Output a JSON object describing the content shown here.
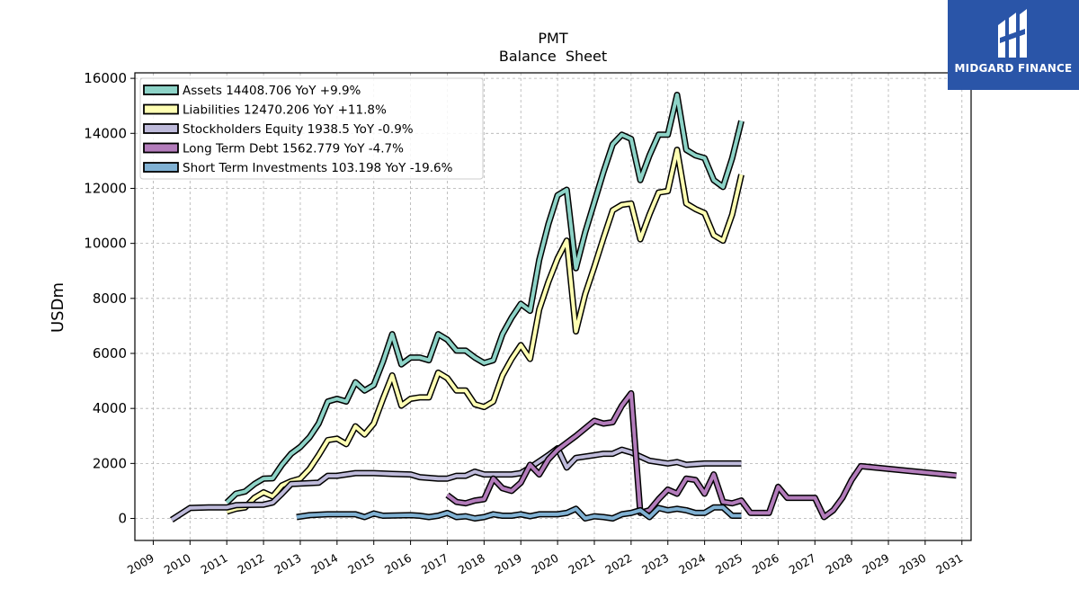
{
  "brand": {
    "logo_text": "MIDGARD FINANCE",
    "background": "#2a55a8"
  },
  "chart_data": {
    "type": "line",
    "title": "PMT",
    "subtitle": "Balance  Sheet",
    "xlabel": "",
    "ylabel": "USDm",
    "xlim": [
      2008.5,
      2031.25
    ],
    "ylim": [
      -800,
      16200
    ],
    "x_ticks": [
      "2009",
      "2010",
      "2011",
      "2012",
      "2013",
      "2014",
      "2015",
      "2016",
      "2017",
      "2018",
      "2019",
      "2020",
      "2021",
      "2022",
      "2023",
      "2024",
      "2025",
      "2026",
      "2027",
      "2028",
      "2029",
      "2030",
      "2031"
    ],
    "y_ticks": [
      "0",
      "2000",
      "4000",
      "6000",
      "8000",
      "10000",
      "12000",
      "14000",
      "16000"
    ],
    "grid": true,
    "legend_position": "upper-left",
    "series": [
      {
        "name": "Assets",
        "legend": "Assets  14408.706 YoY +9.9%",
        "color": "#8dd3c7",
        "points": [
          [
            2011.0,
            580
          ],
          [
            2011.25,
            900
          ],
          [
            2011.5,
            980
          ],
          [
            2011.75,
            1250
          ],
          [
            2012.0,
            1450
          ],
          [
            2012.25,
            1460
          ],
          [
            2012.5,
            1950
          ],
          [
            2012.75,
            2350
          ],
          [
            2013.0,
            2600
          ],
          [
            2013.25,
            2950
          ],
          [
            2013.5,
            3450
          ],
          [
            2013.75,
            4250
          ],
          [
            2014.0,
            4350
          ],
          [
            2014.25,
            4250
          ],
          [
            2014.5,
            4950
          ],
          [
            2014.75,
            4650
          ],
          [
            2015.0,
            4850
          ],
          [
            2015.25,
            5700
          ],
          [
            2015.5,
            6700
          ],
          [
            2015.75,
            5600
          ],
          [
            2016.0,
            5850
          ],
          [
            2016.25,
            5850
          ],
          [
            2016.5,
            5750
          ],
          [
            2016.75,
            6700
          ],
          [
            2017.0,
            6500
          ],
          [
            2017.25,
            6100
          ],
          [
            2017.5,
            6100
          ],
          [
            2017.75,
            5850
          ],
          [
            2018.0,
            5650
          ],
          [
            2018.25,
            5750
          ],
          [
            2018.5,
            6700
          ],
          [
            2018.75,
            7300
          ],
          [
            2019.0,
            7800
          ],
          [
            2019.25,
            7550
          ],
          [
            2019.5,
            9400
          ],
          [
            2019.75,
            10700
          ],
          [
            2020.0,
            11750
          ],
          [
            2020.25,
            11950
          ],
          [
            2020.5,
            9100
          ],
          [
            2020.75,
            10400
          ],
          [
            2021.0,
            11500
          ],
          [
            2021.25,
            12600
          ],
          [
            2021.5,
            13600
          ],
          [
            2021.75,
            13950
          ],
          [
            2022.0,
            13800
          ],
          [
            2022.25,
            12300
          ],
          [
            2022.5,
            13200
          ],
          [
            2022.75,
            13950
          ],
          [
            2023.0,
            13950
          ],
          [
            2023.25,
            15400
          ],
          [
            2023.5,
            13400
          ],
          [
            2023.75,
            13200
          ],
          [
            2024.0,
            13100
          ],
          [
            2024.25,
            12300
          ],
          [
            2024.5,
            12050
          ],
          [
            2024.75,
            13100
          ],
          [
            2025.0,
            14450
          ]
        ]
      },
      {
        "name": "Liabilities",
        "legend": "Liabilities  12470.206 YoY +11.8%",
        "color": "#ffffb3",
        "points": [
          [
            2011.0,
            250
          ],
          [
            2011.25,
            350
          ],
          [
            2011.5,
            400
          ],
          [
            2011.75,
            750
          ],
          [
            2012.0,
            950
          ],
          [
            2012.25,
            800
          ],
          [
            2012.5,
            1200
          ],
          [
            2012.75,
            1350
          ],
          [
            2013.0,
            1450
          ],
          [
            2013.25,
            1800
          ],
          [
            2013.5,
            2300
          ],
          [
            2013.75,
            2850
          ],
          [
            2014.0,
            2900
          ],
          [
            2014.25,
            2700
          ],
          [
            2014.5,
            3350
          ],
          [
            2014.75,
            3050
          ],
          [
            2015.0,
            3450
          ],
          [
            2015.25,
            4350
          ],
          [
            2015.5,
            5200
          ],
          [
            2015.75,
            4100
          ],
          [
            2016.0,
            4350
          ],
          [
            2016.25,
            4400
          ],
          [
            2016.5,
            4400
          ],
          [
            2016.75,
            5300
          ],
          [
            2017.0,
            5100
          ],
          [
            2017.25,
            4650
          ],
          [
            2017.5,
            4650
          ],
          [
            2017.75,
            4150
          ],
          [
            2018.0,
            4050
          ],
          [
            2018.25,
            4250
          ],
          [
            2018.5,
            5200
          ],
          [
            2018.75,
            5800
          ],
          [
            2019.0,
            6300
          ],
          [
            2019.25,
            5800
          ],
          [
            2019.5,
            7600
          ],
          [
            2019.75,
            8600
          ],
          [
            2020.0,
            9450
          ],
          [
            2020.25,
            10100
          ],
          [
            2020.5,
            6800
          ],
          [
            2020.75,
            8150
          ],
          [
            2021.0,
            9150
          ],
          [
            2021.25,
            10200
          ],
          [
            2021.5,
            11200
          ],
          [
            2021.75,
            11400
          ],
          [
            2022.0,
            11450
          ],
          [
            2022.25,
            10150
          ],
          [
            2022.5,
            11050
          ],
          [
            2022.75,
            11850
          ],
          [
            2023.0,
            11900
          ],
          [
            2023.25,
            13400
          ],
          [
            2023.5,
            11450
          ],
          [
            2023.75,
            11250
          ],
          [
            2024.0,
            11100
          ],
          [
            2024.25,
            10300
          ],
          [
            2024.5,
            10100
          ],
          [
            2024.75,
            11050
          ],
          [
            2025.0,
            12500
          ]
        ]
      },
      {
        "name": "Stockholders Equity",
        "legend": "Stockholders Equity  1938.5 YoY -0.9%",
        "color": "#bebada",
        "points": [
          [
            2009.5,
            -50
          ],
          [
            2010.0,
            380
          ],
          [
            2010.5,
            400
          ],
          [
            2011.0,
            400
          ],
          [
            2011.25,
            480
          ],
          [
            2011.5,
            490
          ],
          [
            2012.0,
            500
          ],
          [
            2012.25,
            580
          ],
          [
            2012.5,
            900
          ],
          [
            2012.75,
            1250
          ],
          [
            2013.0,
            1270
          ],
          [
            2013.5,
            1300
          ],
          [
            2013.75,
            1550
          ],
          [
            2014.0,
            1550
          ],
          [
            2014.25,
            1600
          ],
          [
            2014.5,
            1650
          ],
          [
            2015.0,
            1650
          ],
          [
            2015.5,
            1620
          ],
          [
            2016.0,
            1600
          ],
          [
            2016.25,
            1500
          ],
          [
            2016.75,
            1450
          ],
          [
            2017.0,
            1450
          ],
          [
            2017.25,
            1550
          ],
          [
            2017.5,
            1550
          ],
          [
            2017.75,
            1700
          ],
          [
            2018.0,
            1600
          ],
          [
            2018.75,
            1600
          ],
          [
            2019.0,
            1650
          ],
          [
            2019.25,
            1850
          ],
          [
            2019.75,
            2300
          ],
          [
            2020.0,
            2550
          ],
          [
            2020.25,
            1850
          ],
          [
            2020.5,
            2200
          ],
          [
            2021.0,
            2300
          ],
          [
            2021.25,
            2350
          ],
          [
            2021.5,
            2350
          ],
          [
            2021.75,
            2500
          ],
          [
            2022.0,
            2400
          ],
          [
            2022.25,
            2250
          ],
          [
            2022.5,
            2100
          ],
          [
            2023.0,
            2000
          ],
          [
            2023.25,
            2050
          ],
          [
            2023.5,
            1950
          ],
          [
            2024.0,
            2000
          ],
          [
            2024.5,
            2000
          ],
          [
            2025.0,
            2000
          ]
        ]
      },
      {
        "name": "Long Term Debt",
        "legend": "Long Term Debt  1562.779 YoY -4.7%",
        "color": "#b37cbb",
        "points": [
          [
            2017.0,
            850
          ],
          [
            2017.25,
            600
          ],
          [
            2017.5,
            550
          ],
          [
            2017.75,
            650
          ],
          [
            2018.0,
            700
          ],
          [
            2018.25,
            1450
          ],
          [
            2018.5,
            1100
          ],
          [
            2018.75,
            1000
          ],
          [
            2019.0,
            1300
          ],
          [
            2019.25,
            1950
          ],
          [
            2019.5,
            1600
          ],
          [
            2019.75,
            2150
          ],
          [
            2020.0,
            2500
          ],
          [
            2020.5,
            3000
          ],
          [
            2021.0,
            3550
          ],
          [
            2021.25,
            3450
          ],
          [
            2021.5,
            3500
          ],
          [
            2021.75,
            4100
          ],
          [
            2022.0,
            4550
          ],
          [
            2022.25,
            200
          ],
          [
            2022.5,
            300
          ],
          [
            2022.75,
            700
          ],
          [
            2023.0,
            1050
          ],
          [
            2023.25,
            900
          ],
          [
            2023.5,
            1450
          ],
          [
            2023.75,
            1400
          ],
          [
            2024.0,
            900
          ],
          [
            2024.25,
            1600
          ],
          [
            2024.5,
            600
          ],
          [
            2024.75,
            550
          ],
          [
            2025.0,
            650
          ],
          [
            2025.25,
            200
          ],
          [
            2025.5,
            200
          ],
          [
            2025.75,
            200
          ],
          [
            2026.0,
            1150
          ],
          [
            2026.25,
            750
          ],
          [
            2026.5,
            750
          ],
          [
            2026.75,
            750
          ],
          [
            2027.0,
            750
          ],
          [
            2027.25,
            50
          ],
          [
            2027.5,
            300
          ],
          [
            2027.75,
            750
          ],
          [
            2028.0,
            1400
          ],
          [
            2028.25,
            1900
          ],
          [
            2030.85,
            1560
          ]
        ]
      },
      {
        "name": "Short Term Investments",
        "legend": "Short Term Investments  103.198 YoY -19.6%",
        "color": "#80b1d3",
        "points": [
          [
            2012.9,
            50
          ],
          [
            2013.25,
            120
          ],
          [
            2013.75,
            150
          ],
          [
            2014.0,
            150
          ],
          [
            2014.25,
            150
          ],
          [
            2014.5,
            150
          ],
          [
            2014.75,
            50
          ],
          [
            2015.0,
            180
          ],
          [
            2015.25,
            100
          ],
          [
            2016.0,
            120
          ],
          [
            2016.25,
            100
          ],
          [
            2016.5,
            50
          ],
          [
            2016.75,
            100
          ],
          [
            2017.0,
            200
          ],
          [
            2017.25,
            50
          ],
          [
            2017.5,
            80
          ],
          [
            2017.75,
            0
          ],
          [
            2018.0,
            50
          ],
          [
            2018.25,
            150
          ],
          [
            2018.5,
            100
          ],
          [
            2018.75,
            100
          ],
          [
            2019.0,
            150
          ],
          [
            2019.25,
            80
          ],
          [
            2019.5,
            150
          ],
          [
            2019.75,
            150
          ],
          [
            2020.0,
            150
          ],
          [
            2020.25,
            200
          ],
          [
            2020.5,
            350
          ],
          [
            2020.75,
            0
          ],
          [
            2021.0,
            80
          ],
          [
            2021.25,
            50
          ],
          [
            2021.5,
            0
          ],
          [
            2021.75,
            150
          ],
          [
            2022.0,
            200
          ],
          [
            2022.25,
            300
          ],
          [
            2022.5,
            50
          ],
          [
            2022.75,
            380
          ],
          [
            2023.0,
            300
          ],
          [
            2023.25,
            350
          ],
          [
            2023.5,
            300
          ],
          [
            2023.75,
            200
          ],
          [
            2024.0,
            200
          ],
          [
            2024.25,
            400
          ],
          [
            2024.5,
            400
          ],
          [
            2024.75,
            100
          ],
          [
            2025.0,
            100
          ]
        ]
      }
    ]
  }
}
